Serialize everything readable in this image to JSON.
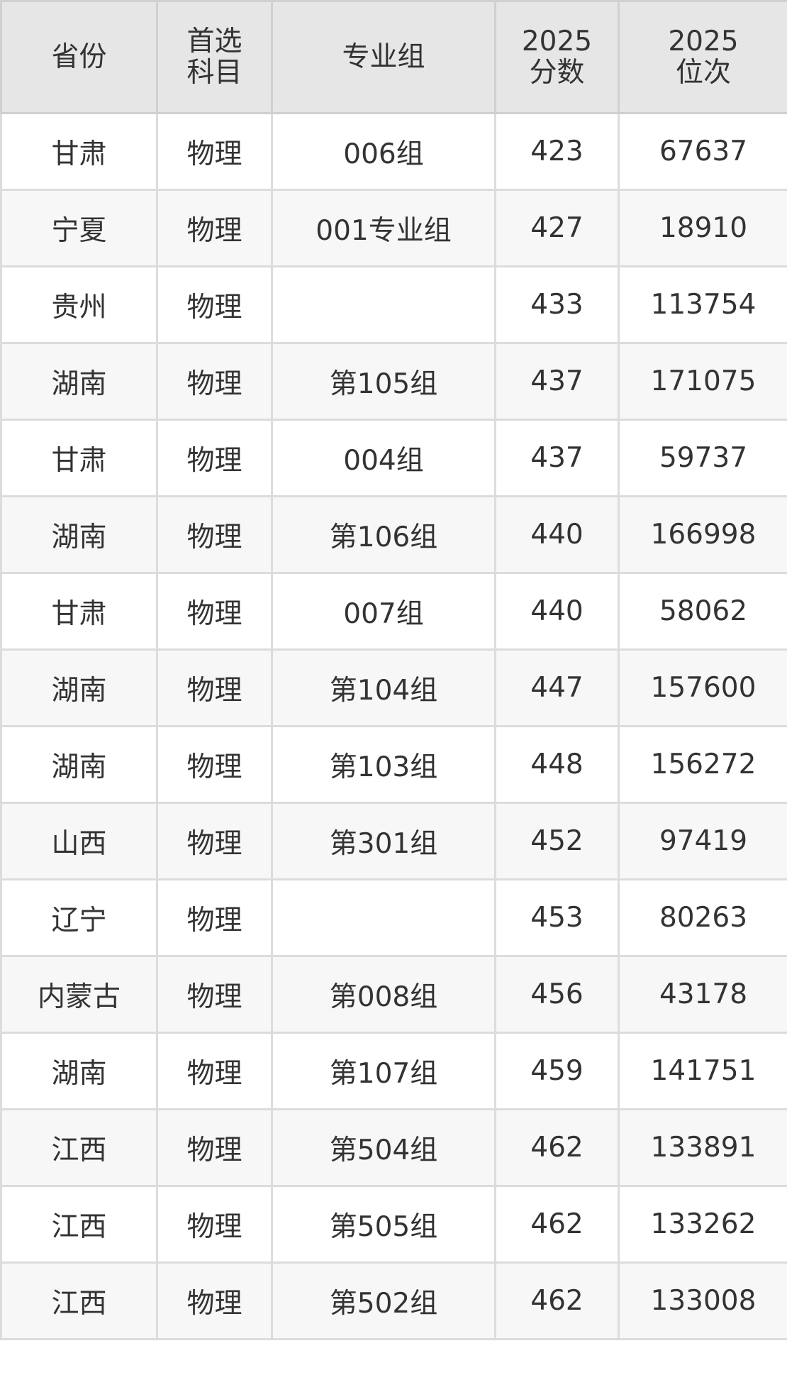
{
  "table": {
    "headers": [
      [
        "省份"
      ],
      [
        "首选",
        "科目"
      ],
      [
        "专业组"
      ],
      [
        "2025",
        "分数"
      ],
      [
        "2025",
        "位次"
      ]
    ],
    "rows": [
      [
        "甘肃",
        "物理",
        "006组",
        "423",
        "67637"
      ],
      [
        "宁夏",
        "物理",
        "001专业组",
        "427",
        "18910"
      ],
      [
        "贵州",
        "物理",
        "",
        "433",
        "113754"
      ],
      [
        "湖南",
        "物理",
        "第105组",
        "437",
        "171075"
      ],
      [
        "甘肃",
        "物理",
        "004组",
        "437",
        "59737"
      ],
      [
        "湖南",
        "物理",
        "第106组",
        "440",
        "166998"
      ],
      [
        "甘肃",
        "物理",
        "007组",
        "440",
        "58062"
      ],
      [
        "湖南",
        "物理",
        "第104组",
        "447",
        "157600"
      ],
      [
        "湖南",
        "物理",
        "第103组",
        "448",
        "156272"
      ],
      [
        "山西",
        "物理",
        "第301组",
        "452",
        "97419"
      ],
      [
        "辽宁",
        "物理",
        "",
        "453",
        "80263"
      ],
      [
        "内蒙古",
        "物理",
        "第008组",
        "456",
        "43178"
      ],
      [
        "湖南",
        "物理",
        "第107组",
        "459",
        "141751"
      ],
      [
        "江西",
        "物理",
        "第504组",
        "462",
        "133891"
      ],
      [
        "江西",
        "物理",
        "第505组",
        "462",
        "133262"
      ],
      [
        "江西",
        "物理",
        "第502组",
        "462",
        "133008"
      ]
    ]
  },
  "colors": {
    "header_bg": "#e6e6e6",
    "alt_row_bg": "#f7f7f7",
    "border": "#dcdcdc",
    "text": "#333333"
  }
}
